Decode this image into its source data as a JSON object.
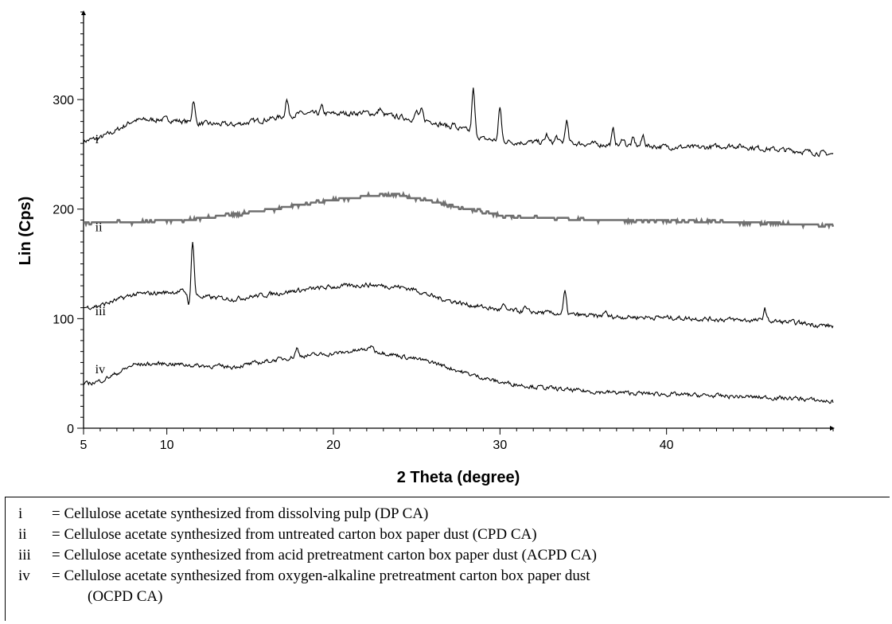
{
  "chart_data": {
    "type": "line",
    "xlabel": "2 Theta (degree)",
    "ylabel": "Lin (Cps)",
    "xlim": [
      5,
      50
    ],
    "ylim": [
      0,
      380
    ],
    "x_ticks": [
      5,
      10,
      20,
      30,
      40
    ],
    "y_ticks": [
      0,
      100,
      200,
      300
    ],
    "grid": false,
    "series": [
      {
        "name": "i",
        "color": "#000000",
        "baseline": [
          [
            5,
            262
          ],
          [
            6,
            265
          ],
          [
            7,
            272
          ],
          [
            8,
            281
          ],
          [
            10,
            282
          ],
          [
            12,
            278
          ],
          [
            14,
            277
          ],
          [
            16,
            282
          ],
          [
            18,
            287
          ],
          [
            20,
            287
          ],
          [
            22,
            288
          ],
          [
            24,
            284
          ],
          [
            26,
            280
          ],
          [
            27,
            275
          ],
          [
            28,
            272
          ],
          [
            29,
            264
          ],
          [
            31,
            261
          ],
          [
            33,
            261
          ],
          [
            36,
            259
          ],
          [
            38,
            258
          ],
          [
            40,
            257
          ],
          [
            42,
            256
          ],
          [
            44,
            258
          ],
          [
            46,
            255
          ],
          [
            48,
            253
          ],
          [
            50,
            250
          ]
        ],
        "peaks": [
          [
            11.6,
            300
          ],
          [
            17.2,
            300
          ],
          [
            19.3,
            293
          ],
          [
            22.8,
            292
          ],
          [
            25.0,
            289
          ],
          [
            25.3,
            290
          ],
          [
            27.2,
            278
          ],
          [
            28.4,
            309
          ],
          [
            30.0,
            293
          ],
          [
            32.8,
            268
          ],
          [
            33.4,
            266
          ],
          [
            34.0,
            281
          ],
          [
            36.8,
            272
          ],
          [
            37.4,
            265
          ],
          [
            38.0,
            264
          ],
          [
            38.6,
            267
          ]
        ],
        "noise": 2.5
      },
      {
        "name": "ii",
        "color": "#707070",
        "baseline": [
          [
            5,
            188
          ],
          [
            8,
            188
          ],
          [
            11,
            190
          ],
          [
            13,
            193
          ],
          [
            16,
            199
          ],
          [
            18,
            204
          ],
          [
            20,
            208
          ],
          [
            22,
            212
          ],
          [
            24,
            213
          ],
          [
            26,
            207
          ],
          [
            28,
            200
          ],
          [
            30,
            194
          ],
          [
            33,
            192
          ],
          [
            36,
            190
          ],
          [
            40,
            189
          ],
          [
            44,
            188
          ],
          [
            48,
            186
          ],
          [
            50,
            185
          ]
        ],
        "peaks": [],
        "noise": 1.2
      },
      {
        "name": "iii",
        "color": "#000000",
        "baseline": [
          [
            5,
            110
          ],
          [
            6,
            112
          ],
          [
            7,
            117
          ],
          [
            8,
            122
          ],
          [
            10,
            124
          ],
          [
            11,
            125
          ],
          [
            12,
            120
          ],
          [
            14,
            118
          ],
          [
            16,
            122
          ],
          [
            18,
            126
          ],
          [
            20,
            129
          ],
          [
            22,
            131
          ],
          [
            24,
            129
          ],
          [
            25,
            126
          ],
          [
            26,
            120
          ],
          [
            28,
            113
          ],
          [
            30,
            108
          ],
          [
            32,
            106
          ],
          [
            34,
            104
          ],
          [
            36,
            102
          ],
          [
            40,
            101
          ],
          [
            44,
            99
          ],
          [
            46,
            98
          ],
          [
            48,
            96
          ],
          [
            50,
            93
          ]
        ],
        "peaks": [
          [
            11.55,
            172
          ],
          [
            11.35,
            112
          ],
          [
            30.2,
            112
          ],
          [
            31.5,
            110
          ],
          [
            33.9,
            124
          ],
          [
            36.3,
            107
          ],
          [
            45.9,
            109
          ]
        ],
        "noise": 2.2
      },
      {
        "name": "iv",
        "color": "#000000",
        "baseline": [
          [
            5,
            40
          ],
          [
            6,
            43
          ],
          [
            7,
            50
          ],
          [
            8,
            58
          ],
          [
            10,
            59
          ],
          [
            12,
            57
          ],
          [
            14,
            56
          ],
          [
            16,
            61
          ],
          [
            18,
            66
          ],
          [
            20,
            68
          ],
          [
            22,
            72
          ],
          [
            24,
            66
          ],
          [
            26,
            60
          ],
          [
            28,
            50
          ],
          [
            30,
            42
          ],
          [
            32,
            38
          ],
          [
            34,
            35
          ],
          [
            36,
            33
          ],
          [
            40,
            31
          ],
          [
            44,
            29
          ],
          [
            48,
            27
          ],
          [
            50,
            24
          ]
        ],
        "peaks": [
          [
            17.8,
            73
          ],
          [
            22.3,
            76
          ]
        ],
        "noise": 2.0
      }
    ]
  },
  "legend": [
    {
      "key": "i",
      "text": "= Cellulose acetate synthesized from dissolving pulp (DP CA)"
    },
    {
      "key": "ii",
      "text": "= Cellulose acetate synthesized from untreated carton box paper dust (CPD CA)"
    },
    {
      "key": "iii",
      "text": "= Cellulose acetate synthesized from acid pretreatment carton box paper dust (ACPD CA)"
    },
    {
      "key": "iv",
      "text": "= Cellulose acetate synthesized from oxygen-alkaline pretreatment carton box paper dust",
      "continuation": "(OCPD CA)"
    }
  ]
}
